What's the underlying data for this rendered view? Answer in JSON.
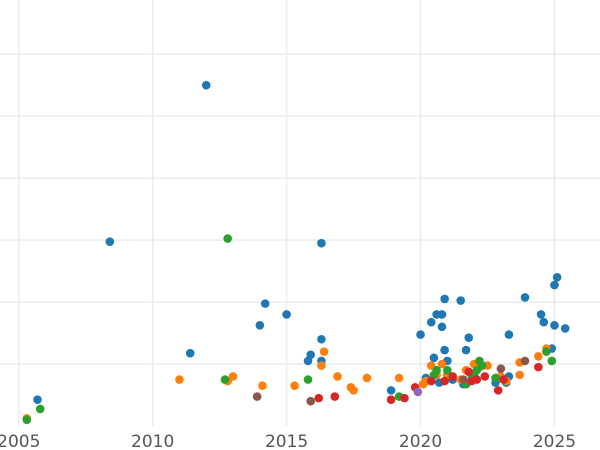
{
  "chart_data": {
    "type": "scatter",
    "title": "",
    "xlabel": "",
    "ylabel": "",
    "xlim": [
      2004.3,
      2026.7
    ],
    "ylim": [
      0,
      27.5
    ],
    "x_ticks": [
      2005,
      2010,
      2015,
      2020,
      2025
    ],
    "x_tick_labels": [
      "2005",
      "2010",
      "2015",
      "2020",
      "2025"
    ],
    "y_gridlines": [
      4,
      8,
      12,
      16,
      20,
      24
    ],
    "y_tick_labels_visible": false,
    "grid": true,
    "legend": "none",
    "series": [
      {
        "color": "#1f77b4",
        "points": [
          [
            2005.7,
            1.7
          ],
          [
            2008.4,
            11.9
          ],
          [
            2011.4,
            4.7
          ],
          [
            2012.0,
            22.0
          ],
          [
            2014.0,
            6.5
          ],
          [
            2014.2,
            7.9
          ],
          [
            2015.0,
            7.2
          ],
          [
            2015.8,
            4.2
          ],
          [
            2015.9,
            4.6
          ],
          [
            2016.3,
            4.2
          ],
          [
            2016.3,
            5.6
          ],
          [
            2016.3,
            11.8
          ],
          [
            2018.9,
            2.3
          ],
          [
            2020.0,
            5.9
          ],
          [
            2020.2,
            3.1
          ],
          [
            2020.4,
            6.7
          ],
          [
            2020.5,
            4.4
          ],
          [
            2020.6,
            7.2
          ],
          [
            2020.7,
            2.8
          ],
          [
            2020.8,
            6.4
          ],
          [
            2020.8,
            7.2
          ],
          [
            2020.9,
            8.2
          ],
          [
            2020.9,
            4.9
          ],
          [
            2021.0,
            4.2
          ],
          [
            2021.2,
            3.0
          ],
          [
            2021.5,
            8.1
          ],
          [
            2021.6,
            2.7
          ],
          [
            2021.7,
            4.9
          ],
          [
            2021.8,
            5.7
          ],
          [
            2022.0,
            3.3
          ],
          [
            2022.8,
            2.8
          ],
          [
            2023.2,
            2.8
          ],
          [
            2023.3,
            3.2
          ],
          [
            2023.3,
            5.9
          ],
          [
            2023.9,
            8.3
          ],
          [
            2024.5,
            7.2
          ],
          [
            2024.6,
            6.7
          ],
          [
            2024.9,
            5.0
          ],
          [
            2025.0,
            6.5
          ],
          [
            2025.0,
            9.1
          ],
          [
            2025.1,
            9.6
          ],
          [
            2025.4,
            6.3
          ]
        ]
      },
      {
        "color": "#ff7f0e",
        "points": [
          [
            2005.3,
            0.5
          ],
          [
            2011.0,
            3.0
          ],
          [
            2012.8,
            2.9
          ],
          [
            2013.0,
            3.2
          ],
          [
            2014.1,
            2.6
          ],
          [
            2015.3,
            2.6
          ],
          [
            2016.3,
            3.9
          ],
          [
            2016.4,
            4.8
          ],
          [
            2016.9,
            3.2
          ],
          [
            2017.4,
            2.5
          ],
          [
            2017.5,
            2.3
          ],
          [
            2018.0,
            3.1
          ],
          [
            2019.2,
            3.1
          ],
          [
            2020.1,
            2.7
          ],
          [
            2020.2,
            2.9
          ],
          [
            2020.4,
            3.9
          ],
          [
            2020.6,
            3.3
          ],
          [
            2020.8,
            4.0
          ],
          [
            2021.0,
            3.3
          ],
          [
            2021.5,
            3.0
          ],
          [
            2021.7,
            3.6
          ],
          [
            2022.0,
            4.0
          ],
          [
            2022.2,
            3.8
          ],
          [
            2022.5,
            3.9
          ],
          [
            2023.0,
            3.2
          ],
          [
            2023.2,
            2.9
          ],
          [
            2023.7,
            4.1
          ],
          [
            2023.7,
            3.3
          ],
          [
            2024.4,
            4.5
          ],
          [
            2024.7,
            5.0
          ]
        ]
      },
      {
        "color": "#2ca02c",
        "points": [
          [
            2005.3,
            0.4
          ],
          [
            2005.8,
            1.1
          ],
          [
            2012.7,
            3.0
          ],
          [
            2012.8,
            12.1
          ],
          [
            2015.8,
            3.0
          ],
          [
            2019.2,
            1.9
          ],
          [
            2020.5,
            3.3
          ],
          [
            2020.6,
            3.6
          ],
          [
            2021.0,
            3.6
          ],
          [
            2021.7,
            2.7
          ],
          [
            2021.9,
            3.3
          ],
          [
            2022.1,
            3.6
          ],
          [
            2022.2,
            4.2
          ],
          [
            2022.3,
            3.9
          ],
          [
            2022.8,
            3.1
          ],
          [
            2024.7,
            4.8
          ],
          [
            2024.9,
            4.2
          ]
        ]
      },
      {
        "color": "#d62728",
        "points": [
          [
            2016.2,
            1.8
          ],
          [
            2016.8,
            1.9
          ],
          [
            2018.9,
            1.7
          ],
          [
            2019.4,
            1.8
          ],
          [
            2019.8,
            2.5
          ],
          [
            2020.4,
            2.9
          ],
          [
            2020.9,
            2.9
          ],
          [
            2021.2,
            3.2
          ],
          [
            2021.8,
            3.5
          ],
          [
            2021.9,
            2.9
          ],
          [
            2022.1,
            3.0
          ],
          [
            2022.4,
            3.2
          ],
          [
            2022.9,
            2.3
          ],
          [
            2023.1,
            3.0
          ],
          [
            2024.4,
            3.8
          ]
        ]
      },
      {
        "color": "#8c564b",
        "points": [
          [
            2013.9,
            1.9
          ],
          [
            2015.9,
            1.6
          ],
          [
            2021.6,
            3.0
          ],
          [
            2023.0,
            3.7
          ],
          [
            2023.9,
            4.2
          ]
        ]
      },
      {
        "color": "#9467bd",
        "points": [
          [
            2019.9,
            2.2
          ]
        ]
      }
    ]
  }
}
